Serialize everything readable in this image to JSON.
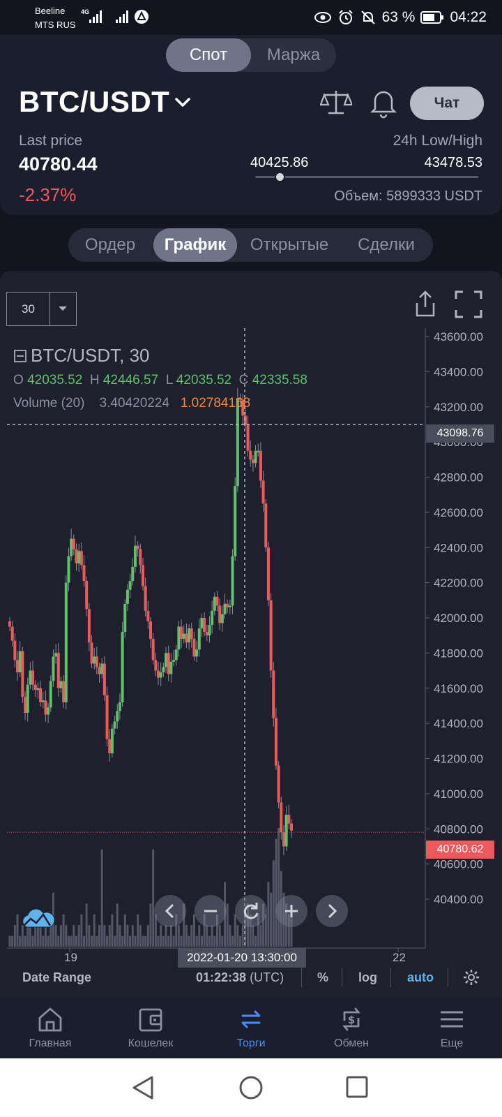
{
  "status_bar": {
    "carrier1": "Beeline",
    "carrier2": "MTS RUS",
    "net_type": "4G",
    "battery": "63 %",
    "time": "04:22"
  },
  "market_toggle": {
    "spot": "Спот",
    "margin": "Маржа"
  },
  "pair": {
    "name": "BTC/USDT",
    "chat_label": "Чат"
  },
  "ticker": {
    "last_price_label": "Last price",
    "last_price": "40780.44",
    "change": "-2.37%",
    "low_high_label": "24h Low/High",
    "low": "40425.86",
    "high": "43478.53",
    "range_position": 0.1,
    "volume": "Объем: 5899333 USDT"
  },
  "tabs": [
    "Ордер",
    "График",
    "Открытые",
    "Сделки"
  ],
  "chart_toolbar": {
    "interval": "30"
  },
  "chart_legend": {
    "title": "BTC/USDT, 30",
    "o_label": "O",
    "o": "42035.52",
    "h_label": "H",
    "h": "42446.57",
    "l_label": "L",
    "l": "42035.52",
    "c_label": "C",
    "c": "42335.58",
    "volume_label": "Volume (20)",
    "volume_value": "3.40420224",
    "volume_ma": "1.02784168"
  },
  "chart_data": {
    "type": "candlestick",
    "ylim": [
      40300,
      43700
    ],
    "y_ticks": [
      "43600.00",
      "43400.00",
      "43200.00",
      "43000.00",
      "42800.00",
      "42600.00",
      "42400.00",
      "42200.00",
      "42000.00",
      "41800.00",
      "41600.00",
      "41400.00",
      "41200.00",
      "41000.00",
      "40800.00",
      "40600.00",
      "40400.00"
    ],
    "x_ticks": [
      "19",
      "22"
    ],
    "crosshair_price": "43098.76",
    "crosshair_time": "2022-01-20 13:30:00",
    "last_price_marker": "40780.62",
    "close_series": [
      41950,
      41870,
      41760,
      41690,
      41810,
      41550,
      41460,
      41620,
      41700,
      41620,
      41590,
      41600,
      41520,
      41530,
      41450,
      41490,
      41640,
      41780,
      41800,
      41600,
      41640,
      41520,
      42200,
      42350,
      42450,
      42390,
      42310,
      42380,
      42300,
      42210,
      42050,
      41860,
      41740,
      41780,
      41720,
      41680,
      41740,
      41560,
      41310,
      41230,
      41370,
      41410,
      41470,
      41520,
      41920,
      42080,
      42160,
      42210,
      42290,
      42410,
      42390,
      42300,
      42180,
      42040,
      41980,
      41880,
      41760,
      41700,
      41660,
      41690,
      41720,
      41800,
      41680,
      41750,
      41760,
      41820,
      41950,
      41880,
      41910,
      41860,
      41940,
      41880,
      41780,
      41820,
      41940,
      42000,
      41920,
      41900,
      41960,
      42040,
      42120,
      42070,
      41970,
      42020,
      42080,
      42060,
      42070,
      42350,
      42750,
      43250,
      43240,
      43150,
      43100,
      42950,
      42900,
      42880,
      42950,
      42950,
      42780,
      42650,
      42400,
      42100,
      41700,
      41430,
      41160,
      40950,
      40780,
      40700,
      40880,
      40830,
      40790
    ],
    "volume_series": [
      1,
      1,
      2,
      3,
      1,
      2,
      1,
      3,
      2,
      1,
      2,
      3,
      2,
      1,
      2,
      1,
      3,
      5,
      2,
      1,
      2,
      3,
      2,
      1,
      1,
      2,
      1,
      2,
      3,
      1,
      4,
      2,
      1,
      3,
      1,
      2,
      9,
      2,
      1,
      2,
      3,
      1,
      4,
      2,
      1,
      3,
      2,
      1,
      2,
      1,
      3,
      2,
      1,
      1,
      2,
      4,
      9,
      3,
      1,
      2,
      1,
      2,
      1,
      2,
      1,
      3,
      2,
      1,
      4,
      2,
      1,
      2,
      3,
      1,
      2,
      1,
      3,
      2,
      1,
      2,
      1,
      3,
      2,
      1,
      6,
      4,
      2,
      1,
      3,
      2,
      1,
      2,
      3,
      4,
      3,
      2,
      1,
      3,
      2,
      4,
      3,
      6,
      5,
      8,
      10,
      11,
      7,
      5,
      4,
      3,
      3
    ]
  },
  "overlay_controls": [
    "back",
    "zoom-out",
    "reset",
    "zoom-in",
    "forward"
  ],
  "bottom_tools": {
    "date_range": "Date Range",
    "clock": "01:22:38",
    "timezone": "(UTC)",
    "percent": "%",
    "log": "log",
    "auto": "auto"
  },
  "nav": [
    "Главная",
    "Кошелек",
    "Торги",
    "Обмен",
    "Еще"
  ],
  "colors": {
    "up": "#5fc16a",
    "down": "#f0595b",
    "active_nav": "#4b8df8",
    "auto": "#5fb2ea"
  }
}
